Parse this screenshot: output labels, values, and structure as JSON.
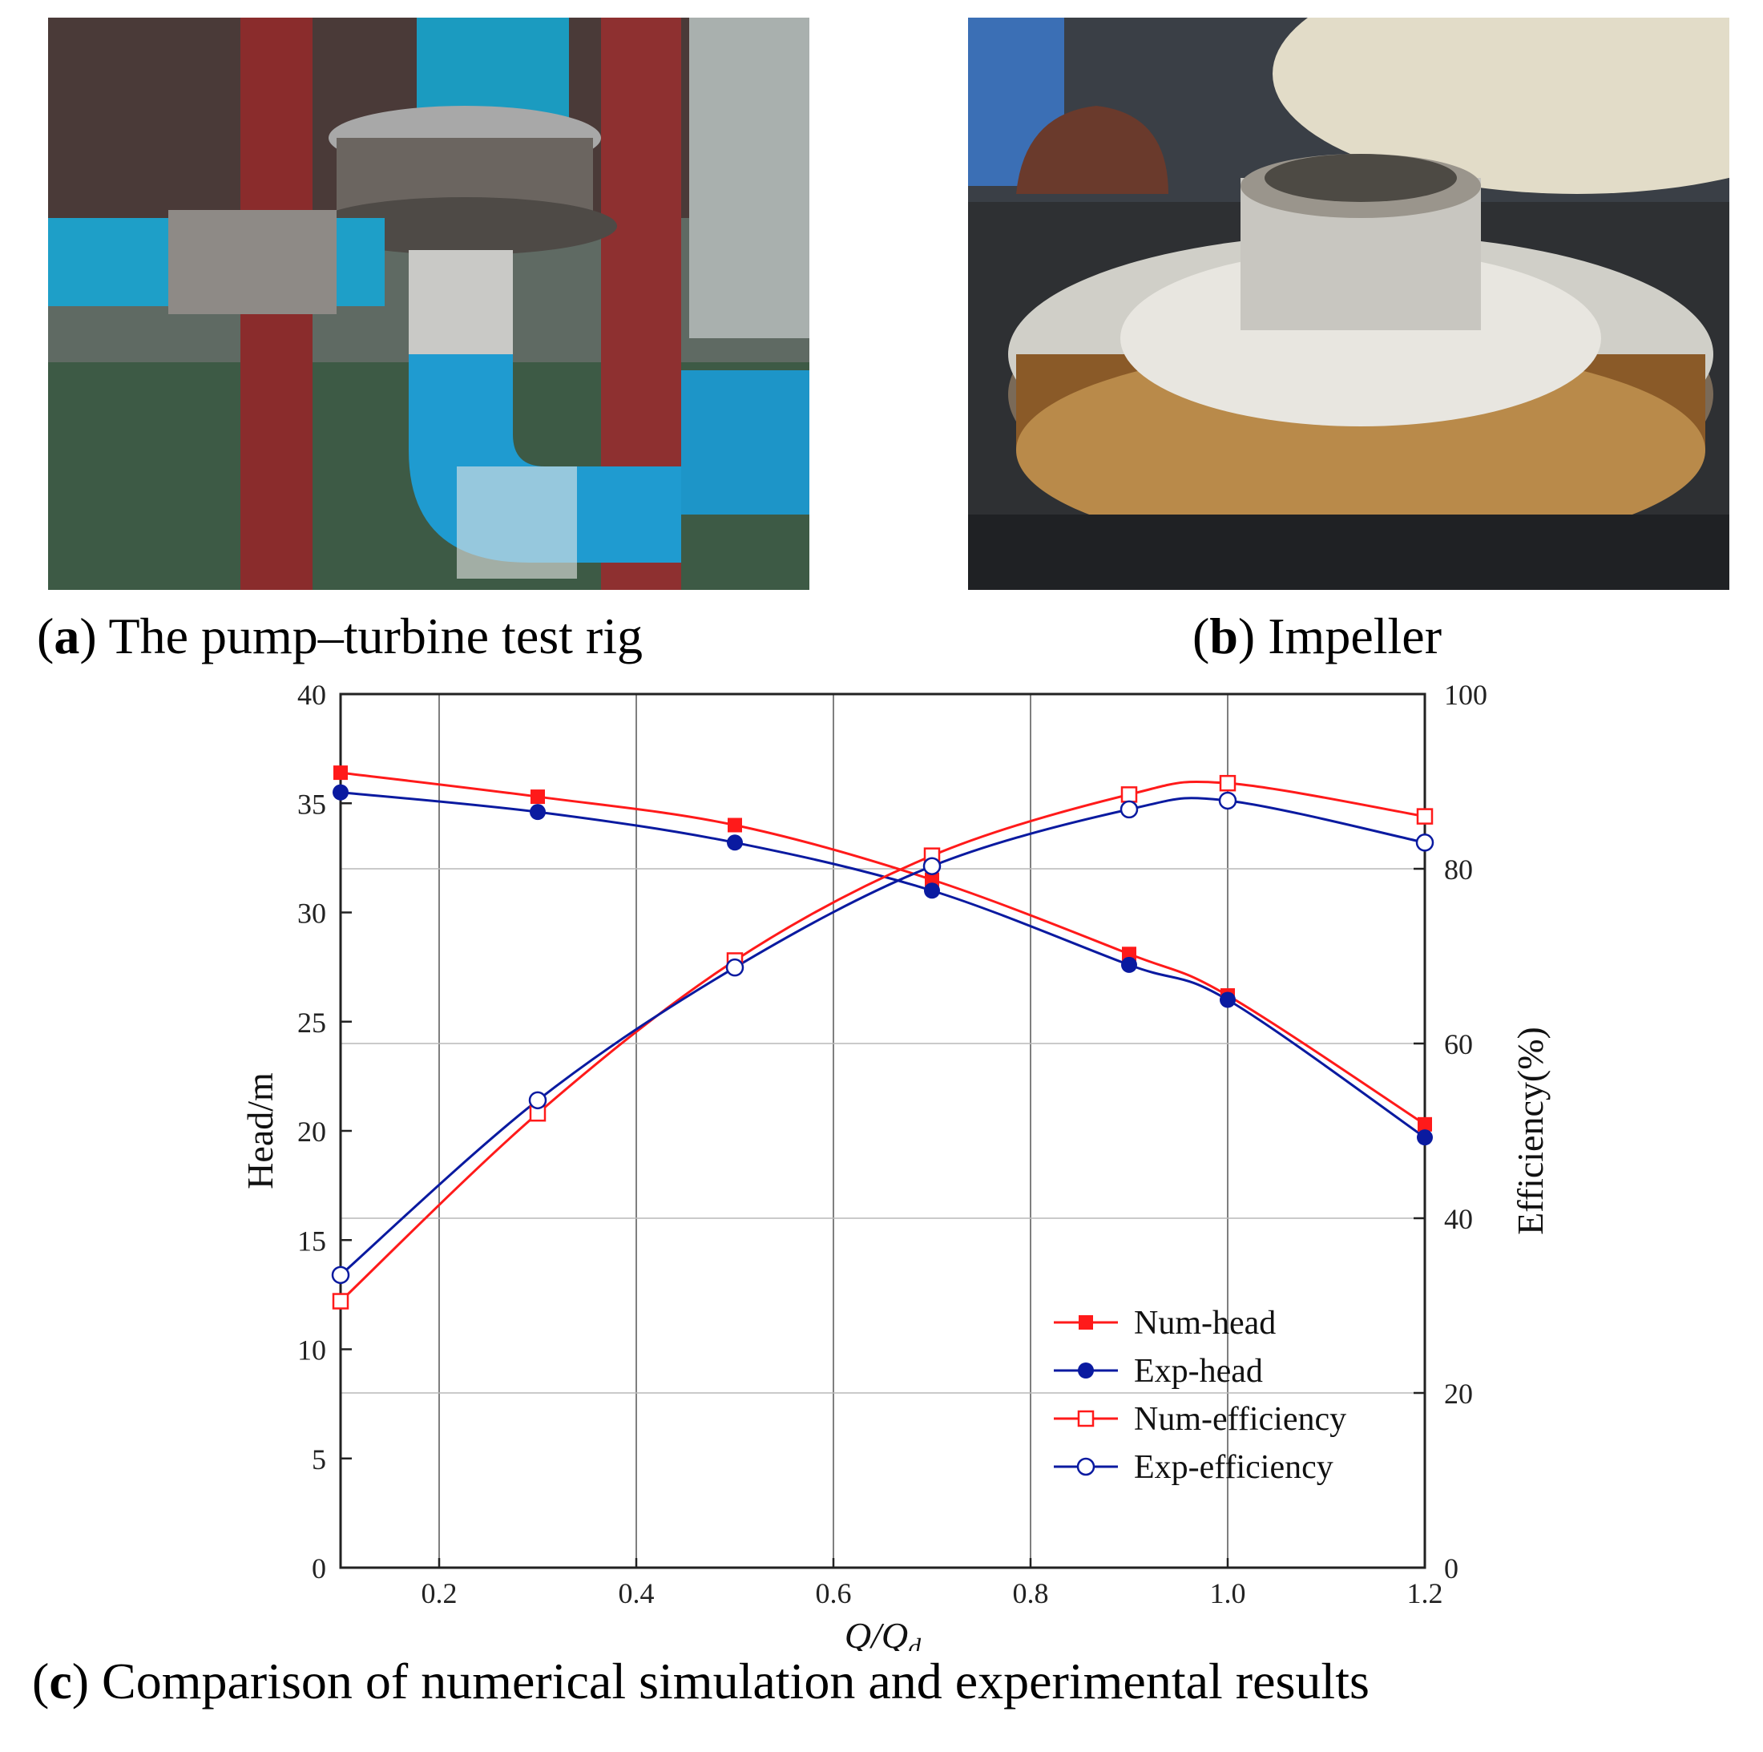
{
  "panels": {
    "a": {
      "letter": "a",
      "caption": "The pump–turbine test rig"
    },
    "b": {
      "letter": "b",
      "caption": "Impeller"
    },
    "c": {
      "letter": "c",
      "caption": "Comparison of numerical simulation and experimental results"
    }
  },
  "colors": {
    "red": "#ff1a1a",
    "blue": "#0a1aa0",
    "grid": "#b8b8b8"
  },
  "chart_data": {
    "type": "line",
    "xlabel_main": "Q",
    "xlabel_denominator": "Q",
    "xlabel_subscript": "d",
    "ylabel_left": "Head/m",
    "ylabel_right": "Efficiency(%)",
    "xlim": [
      0.1,
      1.2
    ],
    "ylim_left": [
      0,
      40
    ],
    "ylim_right": [
      0,
      100
    ],
    "x_ticks": [
      "0.2",
      "0.4",
      "0.6",
      "0.8",
      "1.0",
      "1.2"
    ],
    "y_left_ticks": [
      "0",
      "5",
      "10",
      "15",
      "20",
      "25",
      "30",
      "35",
      "40"
    ],
    "y_right_ticks": [
      "0",
      "20",
      "40",
      "60",
      "80",
      "100"
    ],
    "x": [
      0.1,
      0.3,
      0.5,
      0.7,
      0.9,
      1.0,
      1.2
    ],
    "series": [
      {
        "name": "Num-head",
        "axis": "left",
        "marker": "filled-square",
        "color": "red",
        "values": [
          36.4,
          35.3,
          34.0,
          31.5,
          28.1,
          26.2,
          20.3
        ]
      },
      {
        "name": "Exp-head",
        "axis": "left",
        "marker": "filled-circle",
        "color": "blue",
        "values": [
          35.5,
          34.6,
          33.2,
          31.0,
          27.6,
          26.0,
          19.7
        ]
      },
      {
        "name": "Num-efficiency",
        "axis": "right",
        "marker": "open-square",
        "color": "red",
        "values": [
          30.5,
          52.0,
          69.5,
          81.5,
          88.5,
          89.8,
          86.0
        ]
      },
      {
        "name": "Exp-efficiency",
        "axis": "right",
        "marker": "open-circle",
        "color": "blue",
        "values": [
          33.5,
          53.5,
          68.7,
          80.3,
          86.8,
          87.8,
          83.0
        ]
      }
    ],
    "grid": true,
    "legend_position": "bottom-right"
  }
}
